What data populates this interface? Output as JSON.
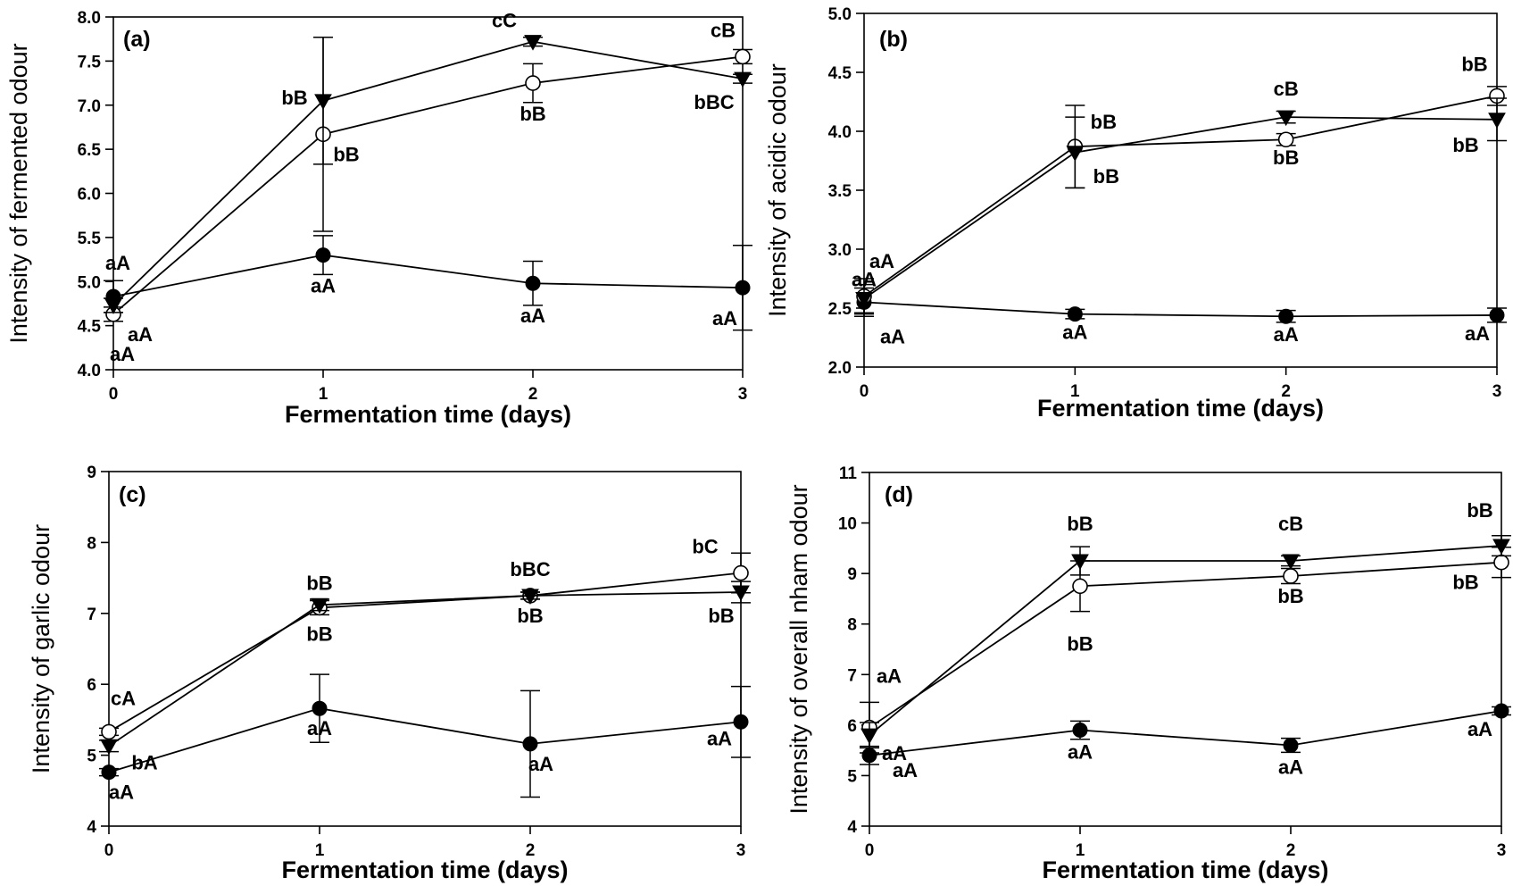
{
  "figure": {
    "background": "#ffffff",
    "line_color": "#000000"
  },
  "chart_data": [
    {
      "type": "line",
      "panel_label": "(a)",
      "xlabel": "Fermentation time (days)",
      "ylabel": "Intensity of fermented odour",
      "x": [
        0,
        1,
        2,
        3
      ],
      "xticks": [
        "0",
        "1",
        "2",
        "3"
      ],
      "ylim": [
        4.0,
        8.0
      ],
      "yticks": [
        "4.0",
        "4.5",
        "5.0",
        "5.5",
        "6.0",
        "6.5",
        "7.0",
        "7.5",
        "8.0"
      ],
      "grid": false,
      "series": [
        {
          "marker": "filled-circle",
          "values": [
            4.83,
            5.3,
            4.98,
            4.93
          ],
          "errors": [
            0.18,
            0.22,
            0.25,
            0.48
          ],
          "letters": [
            "aA",
            "aA",
            "aA",
            "aA"
          ]
        },
        {
          "marker": "open-circle",
          "values": [
            4.63,
            6.67,
            7.25,
            7.55
          ],
          "errors": [
            0.08,
            1.1,
            0.22,
            0.08
          ],
          "letters": [
            "aA",
            "bB",
            "bB",
            "cB"
          ]
        },
        {
          "marker": "filled-triangle-down",
          "values": [
            4.73,
            7.05,
            7.72,
            7.3
          ],
          "errors": [
            0.08,
            0.72,
            0.05,
            0.05
          ],
          "letters": [
            "aA",
            "bB",
            "cC",
            "bBC"
          ]
        }
      ]
    },
    {
      "type": "line",
      "panel_label": "(b)",
      "xlabel": "Fermentation time (days)",
      "ylabel": "Intensity of acidic odour",
      "x": [
        0,
        1,
        2,
        3
      ],
      "xticks": [
        "0",
        "1",
        "2",
        "3"
      ],
      "ylim": [
        2.0,
        5.0
      ],
      "yticks": [
        "2.0",
        "2.5",
        "3.0",
        "3.5",
        "4.0",
        "4.5",
        "5.0"
      ],
      "grid": false,
      "series": [
        {
          "marker": "filled-circle",
          "values": [
            2.55,
            2.45,
            2.43,
            2.44
          ],
          "errors": [
            0.12,
            0.04,
            0.05,
            0.06
          ],
          "letters": [
            "aA",
            "aA",
            "aA",
            "aA"
          ]
        },
        {
          "marker": "open-circle",
          "values": [
            2.6,
            3.87,
            3.93,
            4.3
          ],
          "errors": [
            0.15,
            0.35,
            0.05,
            0.08
          ],
          "letters": [
            "aA",
            "bB",
            "bB",
            "bB"
          ]
        },
        {
          "marker": "filled-triangle-down",
          "values": [
            2.58,
            3.82,
            4.12,
            4.1
          ],
          "errors": [
            0.12,
            0.3,
            0.05,
            0.18
          ],
          "letters": [
            "aA",
            "bB",
            "cB",
            "bB"
          ]
        }
      ]
    },
    {
      "type": "line",
      "panel_label": "(c)",
      "xlabel": "Fermentation time (days)",
      "ylabel": "Intensity of garlic odour",
      "x": [
        0,
        1,
        2,
        3
      ],
      "xticks": [
        "0",
        "1",
        "2",
        "3"
      ],
      "ylim": [
        4,
        9
      ],
      "yticks": [
        "4",
        "5",
        "6",
        "7",
        "8",
        "9"
      ],
      "grid": false,
      "series": [
        {
          "marker": "filled-circle",
          "values": [
            4.76,
            5.66,
            5.16,
            5.47
          ],
          "errors": [
            0.05,
            0.48,
            0.75,
            0.5
          ],
          "letters": [
            "aA",
            "aA",
            "aA",
            "aA"
          ]
        },
        {
          "marker": "open-circle",
          "values": [
            5.33,
            7.08,
            7.25,
            7.57
          ],
          "errors": [
            0.05,
            0.1,
            0.05,
            0.28
          ],
          "letters": [
            "cA",
            "bB",
            "bB",
            "bC"
          ]
        },
        {
          "marker": "filled-triangle-down",
          "values": [
            5.13,
            7.12,
            7.25,
            7.3
          ],
          "errors": [
            0.08,
            0.08,
            0.05,
            0.15
          ],
          "letters": [
            "bA",
            "bB",
            "bBC",
            "bB"
          ]
        }
      ]
    },
    {
      "type": "line",
      "panel_label": "(d)",
      "xlabel": "Fermentation time (days)",
      "ylabel": "Intensity of overall nham odour",
      "x": [
        0,
        1,
        2,
        3
      ],
      "xticks": [
        "0",
        "1",
        "2",
        "3"
      ],
      "ylim": [
        4,
        11
      ],
      "yticks": [
        "4",
        "5",
        "6",
        "7",
        "8",
        "9",
        "10",
        "11"
      ],
      "grid": false,
      "series": [
        {
          "marker": "filled-circle",
          "values": [
            5.4,
            5.9,
            5.6,
            6.28
          ],
          "errors": [
            0.18,
            0.18,
            0.14,
            0.08
          ],
          "letters": [
            "aA",
            "aA",
            "aA",
            "aA"
          ]
        },
        {
          "marker": "open-circle",
          "values": [
            5.95,
            8.75,
            8.95,
            9.22
          ],
          "errors": [
            0.5,
            0.5,
            0.15,
            0.3
          ],
          "letters": [
            "aA",
            "bB",
            "bB",
            "bB"
          ]
        },
        {
          "marker": "filled-triangle-down",
          "values": [
            5.8,
            9.25,
            9.25,
            9.55
          ],
          "errors": [
            0.25,
            0.28,
            0.1,
            0.2
          ],
          "letters": [
            "aA",
            "bB",
            "cB",
            "bB"
          ]
        }
      ]
    }
  ]
}
